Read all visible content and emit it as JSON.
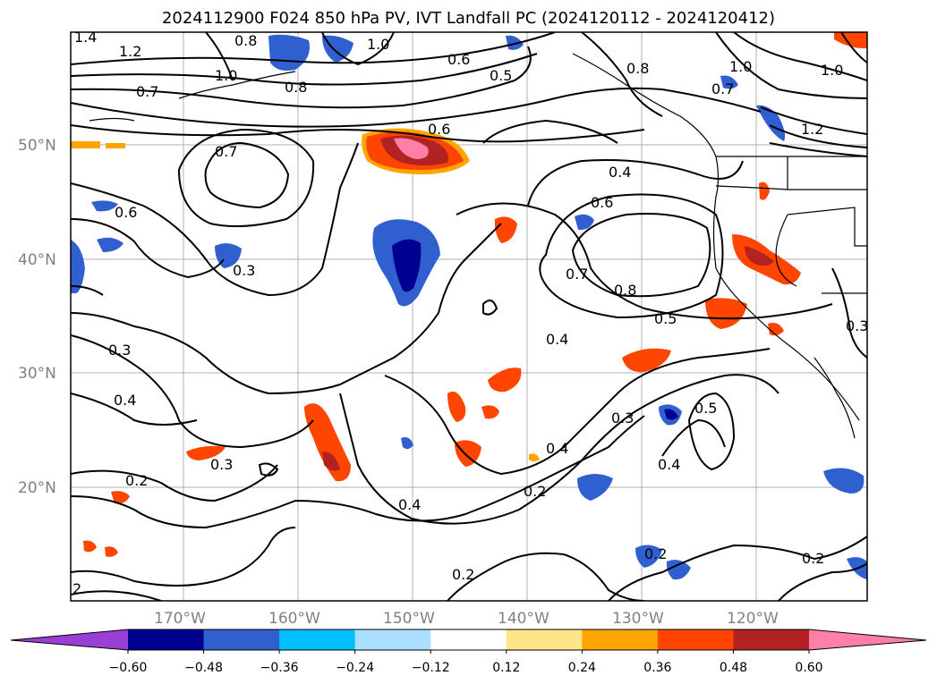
{
  "title": "2024112900 F024 850 hPa PV, IVT Landfall PC (2024120112 - 2024120412)",
  "map": {
    "lat_labels": [
      "50°N",
      "40°N",
      "30°N",
      "20°N"
    ],
    "lon_labels": [
      "170°W",
      "160°W",
      "150°W",
      "140°W",
      "130°W",
      "120°W"
    ],
    "extent": {
      "lon_min": -180,
      "lon_max": -111,
      "lat_min": 10,
      "lat_max": 59.5
    },
    "gridlines": true
  },
  "contour_labels": [
    "1.4",
    "1.2",
    "0.8",
    "1.0",
    "0.7",
    "0.8",
    "0.6",
    "0.5",
    "1.0",
    "0.8",
    "1.0",
    "0.7",
    "1.2",
    "1.0",
    "0.6",
    "0.7",
    "0.4",
    "0.6",
    "0.6",
    "0.3",
    "0.7",
    "0.8",
    "0.5",
    "0.4",
    "0.3",
    "0.4",
    "0.3",
    "0.2",
    "0.3",
    "0.4",
    "0.5",
    "0.4",
    "0.2",
    "0.4",
    "0.2",
    "0.2",
    "0.2",
    "0.3"
  ],
  "colorbar": {
    "ticks": [
      "−0.60",
      "−0.48",
      "−0.36",
      "−0.24",
      "−0.12",
      "0.12",
      "0.24",
      "0.36",
      "0.48",
      "0.60"
    ],
    "colors": [
      "#9a3fd6",
      "#000090",
      "#3060d0",
      "#00bfff",
      "#aadfff",
      "#ffffff",
      "#fde68a",
      "#ffa500",
      "#ff4500",
      "#b22222",
      "#ff7fa8"
    ]
  }
}
